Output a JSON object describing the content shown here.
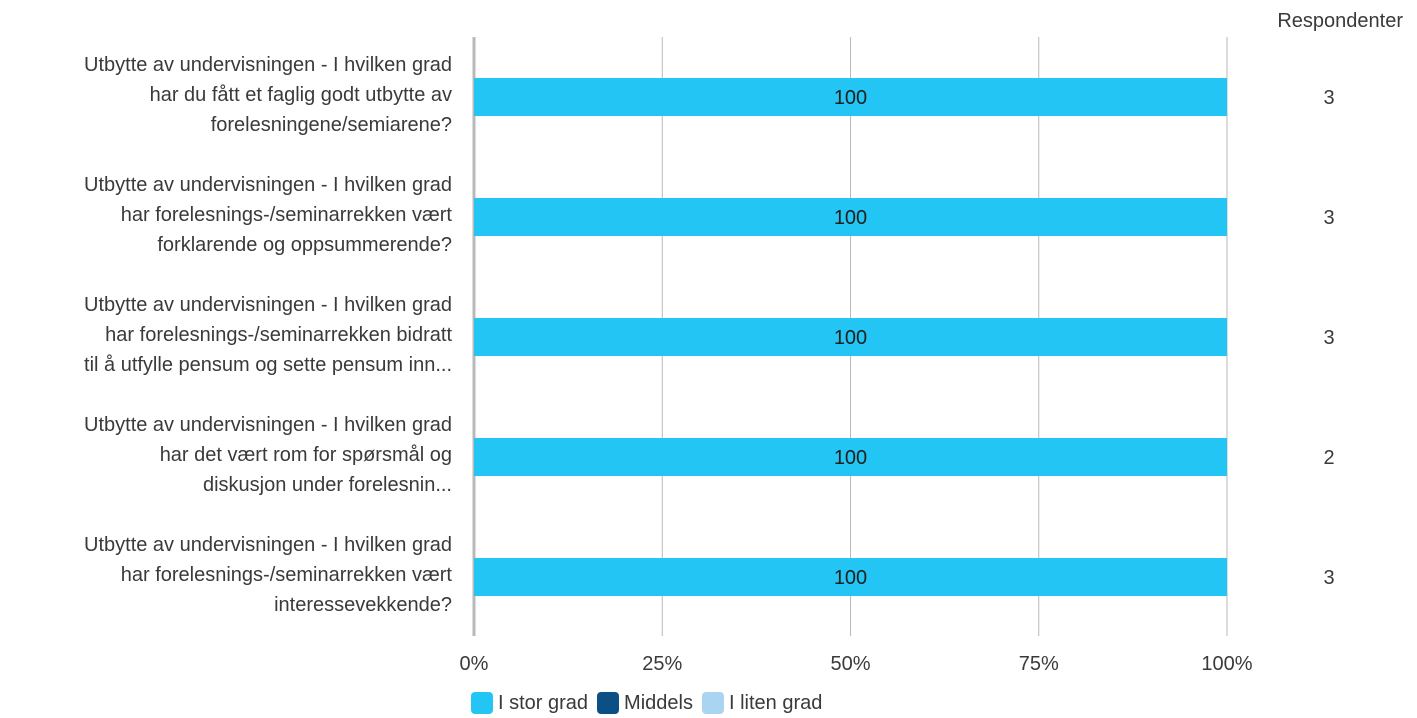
{
  "respondents_header": "Respondenter",
  "colors": {
    "i_stor_grad": "#22c5f3",
    "middels": "#0b4f85",
    "i_liten_grad": "#a9d5f3",
    "grid": "#b9b9b9",
    "axis": "#b9b9b9",
    "text": "#3a3a3a"
  },
  "chart_data": {
    "type": "bar",
    "orientation": "horizontal",
    "stacked": true,
    "percent": true,
    "xlim": [
      0,
      100
    ],
    "x_ticks": [
      "0%",
      "25%",
      "50%",
      "75%",
      "100%"
    ],
    "grid": true,
    "legend_position": "bottom",
    "categories": [
      [
        "Utbytte av undervisningen - I hvilken grad",
        "har du fått et faglig godt utbytte av",
        "forelesningene/semiarene?"
      ],
      [
        "Utbytte av undervisningen - I hvilken grad",
        "har forelesnings-/seminarrekken vært",
        "forklarende og oppsummerende?"
      ],
      [
        "Utbytte av undervisningen - I hvilken grad",
        "har forelesnings-/seminarrekken bidratt",
        "til å utfylle pensum og sette pensum inn..."
      ],
      [
        "Utbytte av undervisningen - I hvilken grad",
        "har det vært rom for spørsmål og",
        "diskusjon under forelesnin..."
      ],
      [
        "Utbytte av undervisningen - I hvilken grad",
        "har forelesnings-/seminarrekken vært",
        "interessevekkende?"
      ]
    ],
    "series": [
      {
        "name": "I stor grad",
        "color": "#22c5f3",
        "values": [
          100,
          100,
          100,
          100,
          100
        ]
      },
      {
        "name": "Middels",
        "color": "#0b4f85",
        "values": [
          0,
          0,
          0,
          0,
          0
        ]
      },
      {
        "name": "I liten grad",
        "color": "#a9d5f3",
        "values": [
          0,
          0,
          0,
          0,
          0
        ]
      }
    ],
    "bar_labels": [
      "100",
      "100",
      "100",
      "100",
      "100"
    ],
    "respondents": [
      3,
      3,
      3,
      2,
      3
    ]
  }
}
